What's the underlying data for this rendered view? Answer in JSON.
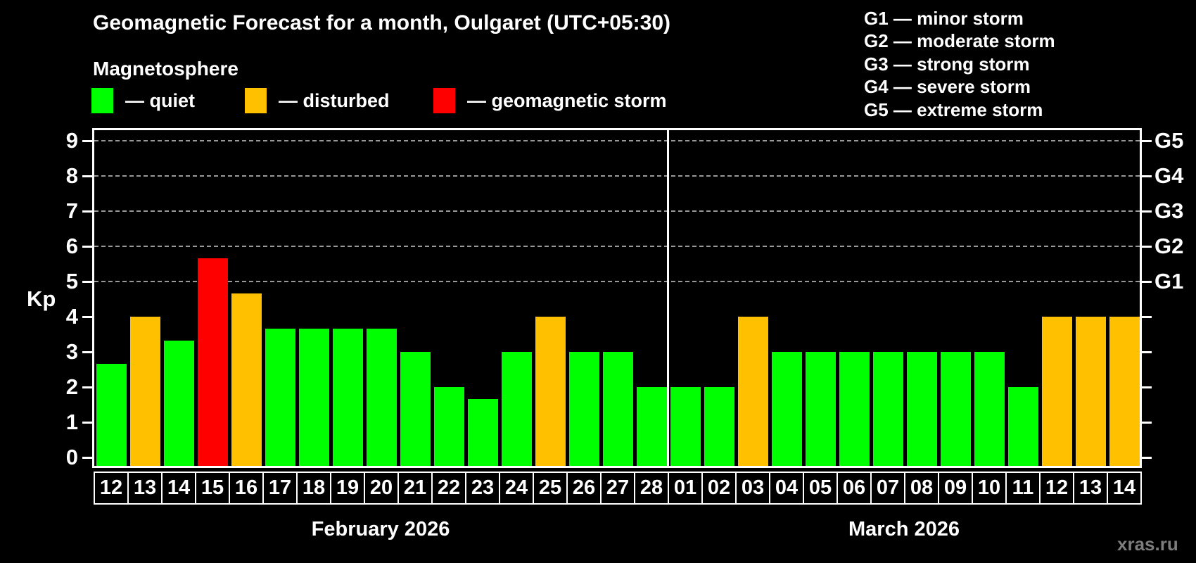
{
  "chart_data": {
    "type": "bar",
    "title": "Geomagnetic Forecast for a month, Oulgaret (UTC+05:30)",
    "subtitle": "Magnetosphere",
    "ylabel": "Kp",
    "ylim": [
      0,
      9
    ],
    "y_ticks": [
      0,
      1,
      2,
      3,
      4,
      5,
      6,
      7,
      8,
      9
    ],
    "grid_levels": [
      5,
      6,
      7,
      8,
      9
    ],
    "colors": {
      "quiet": "#00ff00",
      "disturbed": "#ffc000",
      "storm": "#ff0000",
      "background": "#000000",
      "axis": "#ffffff",
      "grid": "#999999"
    },
    "legend": [
      {
        "label": "— quiet",
        "level": "quiet"
      },
      {
        "label": "— disturbed",
        "level": "disturbed"
      },
      {
        "label": "— geomagnetic storm",
        "level": "storm"
      }
    ],
    "g_legend": [
      "G1 — minor storm",
      "G2 — moderate storm",
      "G3 — strong storm",
      "G4 — severe storm",
      "G5 — extreme storm"
    ],
    "right_axis_labels": [
      {
        "kp": 5,
        "label": "G1"
      },
      {
        "kp": 6,
        "label": "G2"
      },
      {
        "kp": 7,
        "label": "G3"
      },
      {
        "kp": 8,
        "label": "G4"
      },
      {
        "kp": 9,
        "label": "G5"
      }
    ],
    "months": [
      {
        "label": "February 2026",
        "count": 17
      },
      {
        "label": "March 2026",
        "count": 14
      }
    ],
    "bars": [
      {
        "day": "12",
        "kp": 2.67,
        "level": "quiet"
      },
      {
        "day": "13",
        "kp": 4.0,
        "level": "disturbed"
      },
      {
        "day": "14",
        "kp": 3.33,
        "level": "quiet"
      },
      {
        "day": "15",
        "kp": 5.67,
        "level": "storm"
      },
      {
        "day": "16",
        "kp": 4.67,
        "level": "disturbed"
      },
      {
        "day": "17",
        "kp": 3.67,
        "level": "quiet"
      },
      {
        "day": "18",
        "kp": 3.67,
        "level": "quiet"
      },
      {
        "day": "19",
        "kp": 3.67,
        "level": "quiet"
      },
      {
        "day": "20",
        "kp": 3.67,
        "level": "quiet"
      },
      {
        "day": "21",
        "kp": 3.0,
        "level": "quiet"
      },
      {
        "day": "22",
        "kp": 2.0,
        "level": "quiet"
      },
      {
        "day": "23",
        "kp": 1.67,
        "level": "quiet"
      },
      {
        "day": "24",
        "kp": 3.0,
        "level": "quiet"
      },
      {
        "day": "25",
        "kp": 4.0,
        "level": "disturbed"
      },
      {
        "day": "26",
        "kp": 3.0,
        "level": "quiet"
      },
      {
        "day": "27",
        "kp": 3.0,
        "level": "quiet"
      },
      {
        "day": "28",
        "kp": 2.0,
        "level": "quiet"
      },
      {
        "day": "01",
        "kp": 2.0,
        "level": "quiet"
      },
      {
        "day": "02",
        "kp": 2.0,
        "level": "quiet"
      },
      {
        "day": "03",
        "kp": 4.0,
        "level": "disturbed"
      },
      {
        "day": "04",
        "kp": 3.0,
        "level": "quiet"
      },
      {
        "day": "05",
        "kp": 3.0,
        "level": "quiet"
      },
      {
        "day": "06",
        "kp": 3.0,
        "level": "quiet"
      },
      {
        "day": "07",
        "kp": 3.0,
        "level": "quiet"
      },
      {
        "day": "08",
        "kp": 3.0,
        "level": "quiet"
      },
      {
        "day": "09",
        "kp": 3.0,
        "level": "quiet"
      },
      {
        "day": "10",
        "kp": 3.0,
        "level": "quiet"
      },
      {
        "day": "11",
        "kp": 2.0,
        "level": "quiet"
      },
      {
        "day": "12",
        "kp": 4.0,
        "level": "disturbed"
      },
      {
        "day": "13",
        "kp": 4.0,
        "level": "disturbed"
      },
      {
        "day": "14",
        "kp": 4.0,
        "level": "disturbed"
      }
    ],
    "watermark": "xras.ru"
  }
}
